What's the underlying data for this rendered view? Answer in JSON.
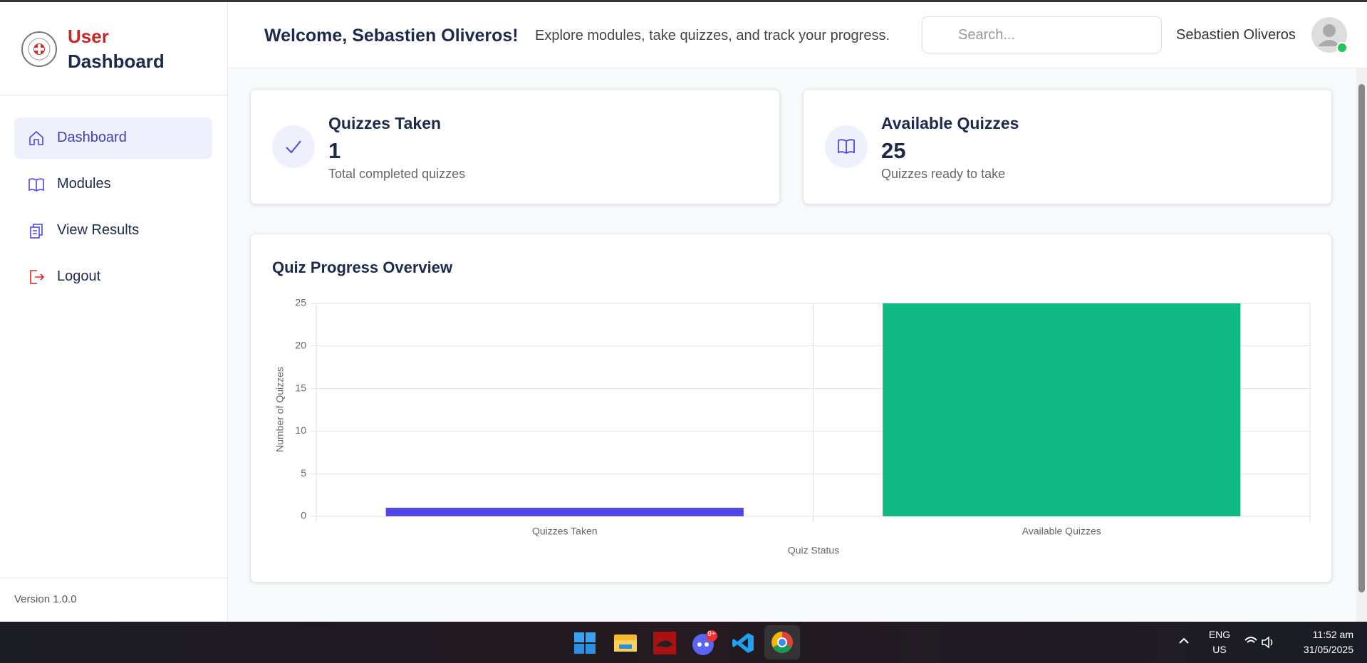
{
  "sidebar": {
    "brand_first": "User",
    "brand_second": "Dashboard",
    "nav": [
      "Dashboard",
      "Modules",
      "View Results",
      "Logout"
    ],
    "version": "Version 1.0.0"
  },
  "header": {
    "welcome": "Welcome, Sebastien Oliveros!",
    "subtitle": "Explore modules, take quizzes, and track your progress.",
    "search_placeholder": "Search...",
    "user_name": "Sebastien Oliveros"
  },
  "cards": [
    {
      "title": "Quizzes Taken",
      "value": 1,
      "caption": "Total completed quizzes"
    },
    {
      "title": "Available Quizzes",
      "value": 25,
      "caption": "Quizzes ready to take"
    }
  ],
  "chart_data": {
    "type": "bar",
    "title": "Quiz Progress Overview",
    "categories": [
      "Quizzes Taken",
      "Available Quizzes"
    ],
    "values": [
      1,
      25
    ],
    "colors": [
      "#4f46e5",
      "#10b981"
    ],
    "ylim": [
      0,
      25
    ],
    "yticks": [
      0,
      5,
      10,
      15,
      20,
      25
    ],
    "xlabel": "Quiz Status",
    "ylabel": "Number of Quizzes",
    "grid": true
  },
  "taskbar": {
    "badge": "9+",
    "lang": "ENG",
    "region": "US",
    "time": "11:52 am",
    "date": "31/05/2025"
  }
}
